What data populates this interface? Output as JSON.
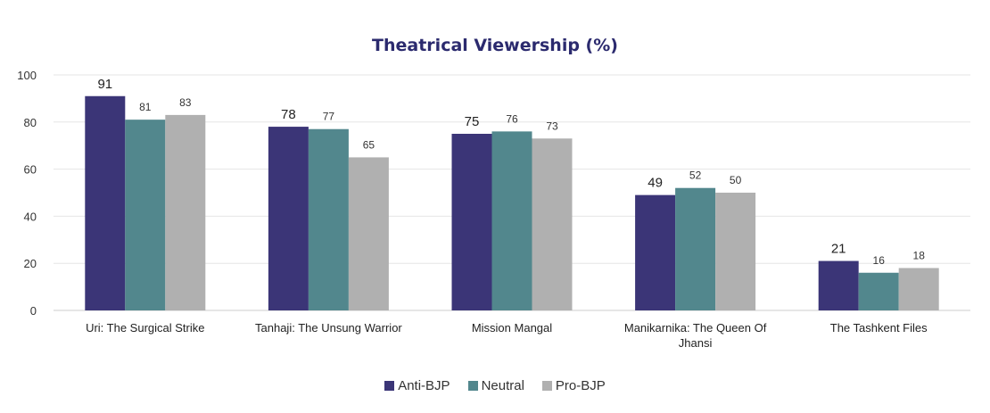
{
  "chart_data": {
    "type": "bar",
    "title": "Theatrical Viewership (%)",
    "categories": [
      [
        "Uri: The Surgical Strike"
      ],
      [
        "Tanhaji: The Unsung Warrior"
      ],
      [
        "Mission Mangal"
      ],
      [
        "Manikarnika: The Queen Of",
        "Jhansi"
      ],
      [
        "The Tashkent Files"
      ]
    ],
    "series": [
      {
        "name": "Anti-BJP",
        "color": "#3b3577",
        "values": [
          91,
          78,
          75,
          49,
          21
        ]
      },
      {
        "name": "Neutral",
        "color": "#52878d",
        "values": [
          81,
          77,
          76,
          52,
          16
        ]
      },
      {
        "name": "Pro-BJP",
        "color": "#b0b0b0",
        "values": [
          83,
          65,
          73,
          50,
          18
        ]
      }
    ],
    "ylim": [
      0,
      100
    ],
    "yticks": [
      0,
      20,
      40,
      60,
      80,
      100
    ],
    "grid": true,
    "legend_position": "bottom",
    "title_color": "#2b2a6e"
  }
}
